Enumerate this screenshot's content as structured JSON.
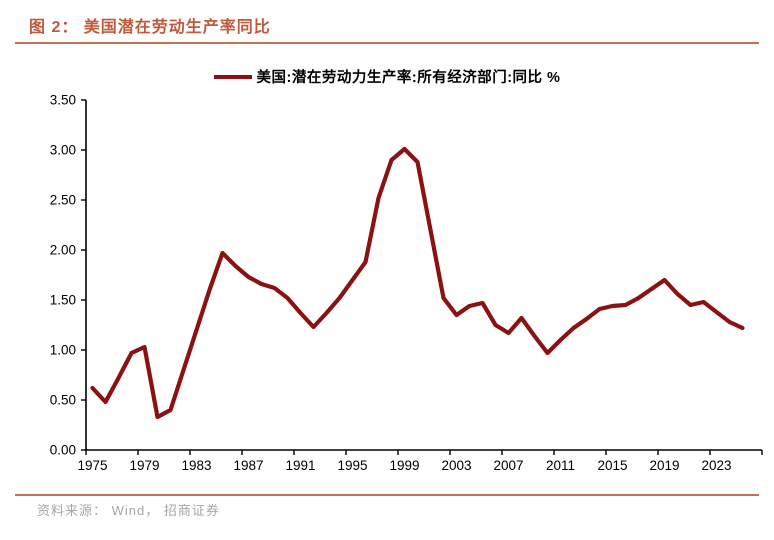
{
  "figure": {
    "title": "图 2： 美国潜在劳动生产率同比",
    "source": "资料来源： Wind， 招商证券"
  },
  "colors": {
    "title_text": "#c05a3c",
    "rule": "#c4714e",
    "series_line": "#8b1212",
    "axis": "#000000",
    "tick_label": "#000000",
    "source_text": "#a6a6a6"
  },
  "chart_data": {
    "type": "line",
    "title": "美国潜在劳动生产率同比",
    "legend": [
      "美国:潜在劳动力生产率:所有经济部门:同比 %"
    ],
    "legend_position": "top-center",
    "grid": false,
    "xlabel": "",
    "ylabel": "",
    "ylim": [
      0.0,
      3.5
    ],
    "xlim": [
      1975,
      2025
    ],
    "y_tick_labels": [
      "0.00",
      "0.50",
      "1.00",
      "1.50",
      "2.00",
      "2.50",
      "3.00",
      "3.50"
    ],
    "x_tick_labels": [
      "1975",
      "1979",
      "1983",
      "1987",
      "1991",
      "1995",
      "1999",
      "2003",
      "2007",
      "2011",
      "2015",
      "2019",
      "2023"
    ],
    "x_tick_interval_years": 4,
    "x": [
      1975,
      1976,
      1977,
      1978,
      1979,
      1980,
      1981,
      1982,
      1983,
      1984,
      1985,
      1986,
      1987,
      1988,
      1989,
      1990,
      1991,
      1992,
      1993,
      1994,
      1995,
      1996,
      1997,
      1998,
      1999,
      2000,
      2001,
      2002,
      2003,
      2004,
      2005,
      2006,
      2007,
      2008,
      2009,
      2010,
      2011,
      2012,
      2013,
      2014,
      2015,
      2016,
      2017,
      2018,
      2019,
      2020,
      2021,
      2022,
      2023,
      2024,
      2025
    ],
    "series": [
      {
        "name": "美国:潜在劳动力生产率:所有经济部门:同比 %",
        "values": [
          0.62,
          0.48,
          0.72,
          0.97,
          1.03,
          0.33,
          0.4,
          0.8,
          1.2,
          1.6,
          1.97,
          1.84,
          1.73,
          1.66,
          1.62,
          1.52,
          1.37,
          1.23,
          1.37,
          1.52,
          1.7,
          1.88,
          2.52,
          2.9,
          3.01,
          2.88,
          2.2,
          1.52,
          1.35,
          1.44,
          1.47,
          1.25,
          1.17,
          1.32,
          1.14,
          0.97,
          1.1,
          1.22,
          1.31,
          1.41,
          1.44,
          1.45,
          1.52,
          1.61,
          1.7,
          1.56,
          1.45,
          1.48,
          1.38,
          1.28,
          1.22
        ]
      }
    ]
  }
}
